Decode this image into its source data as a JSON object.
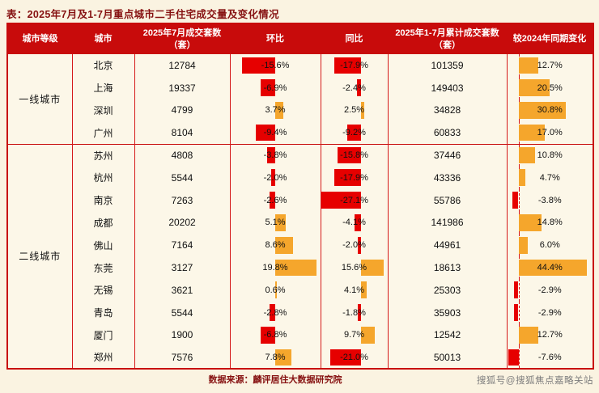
{
  "title": "表：2025年7月及1-7月重点城市二手住宅成交量及变化情况",
  "footer": {
    "source": "数据来源：麟评居住大数据研究院",
    "watermark": "搜狐号@搜狐焦点嘉略关站"
  },
  "colors": {
    "page_bg": "#FAF3E1",
    "table_bg": "#FCF7E8",
    "header_bg": "#C80B0B",
    "border_red": "#D51A1A",
    "negative_bar": "#E60000",
    "positive_bar": "#F5A62C",
    "title_text": "#861111",
    "body_text": "#111111"
  },
  "table": {
    "headers": {
      "tier": "城市等级",
      "city": "城市",
      "jul_sales": "2025年7月成交套数（套）",
      "mom": "环比",
      "yoy": "同比",
      "cum_sales": "2025年1-7月累计成交套数（套）",
      "vs2024": "较2024年同期变化"
    }
  },
  "chart_data": {
    "type": "table",
    "title": "2025年7月及1-7月重点城市二手住宅成交量及变化情况",
    "columns": [
      "城市等级",
      "城市",
      "2025年7月成交套数（套）",
      "环比",
      "同比",
      "2025年1-7月累计成交套数（套）",
      "较2024年同期变化"
    ],
    "bar_columns": {
      "环比": {
        "style": "diverging-bar",
        "negative_color": "#E60000",
        "positive_color": "#F5A62C"
      },
      "同比": {
        "style": "diverging-bar",
        "negative_color": "#E60000",
        "positive_color": "#F5A62C"
      },
      "较2024年同期变化": {
        "style": "diverging-bar",
        "baseline": "dashed-left",
        "negative_color": "#E60000",
        "positive_color": "#F5A62C"
      }
    },
    "rows": [
      [
        "一线城市",
        "北京",
        "12784",
        "-15.6%",
        "-17.9%",
        "101359",
        "12.7%"
      ],
      [
        "一线城市",
        "上海",
        "19337",
        "-6.9%",
        "-2.4%",
        "149403",
        "20.5%"
      ],
      [
        "一线城市",
        "深圳",
        "4799",
        "3.7%",
        "2.5%",
        "34828",
        "30.8%"
      ],
      [
        "一线城市",
        "广州",
        "8104",
        "-9.4%",
        "-9.2%",
        "60833",
        "17.0%"
      ],
      [
        "二线城市",
        "苏州",
        "4808",
        "-3.8%",
        "-15.8%",
        "37446",
        "10.8%"
      ],
      [
        "二线城市",
        "杭州",
        "5544",
        "-2.0%",
        "-17.9%",
        "43336",
        "4.7%"
      ],
      [
        "二线城市",
        "南京",
        "7263",
        "-2.6%",
        "-27.1%",
        "55786",
        "-3.8%"
      ],
      [
        "二线城市",
        "成都",
        "20202",
        "5.1%",
        "-4.1%",
        "141986",
        "14.8%"
      ],
      [
        "二线城市",
        "佛山",
        "7164",
        "8.6%",
        "-2.0%",
        "44961",
        "6.0%"
      ],
      [
        "二线城市",
        "东莞",
        "3127",
        "19.8%",
        "15.6%",
        "18613",
        "44.4%"
      ],
      [
        "二线城市",
        "无锡",
        "3621",
        "0.6%",
        "4.1%",
        "25303",
        "-2.9%"
      ],
      [
        "二线城市",
        "青岛",
        "5544",
        "-2.8%",
        "-1.8%",
        "35903",
        "-2.9%"
      ],
      [
        "二线城市",
        "厦门",
        "1900",
        "-6.8%",
        "9.7%",
        "12542",
        "12.7%"
      ],
      [
        "二线城市",
        "郑州",
        "7576",
        "7.8%",
        "-21.0%",
        "50013",
        "-7.6%"
      ]
    ]
  }
}
